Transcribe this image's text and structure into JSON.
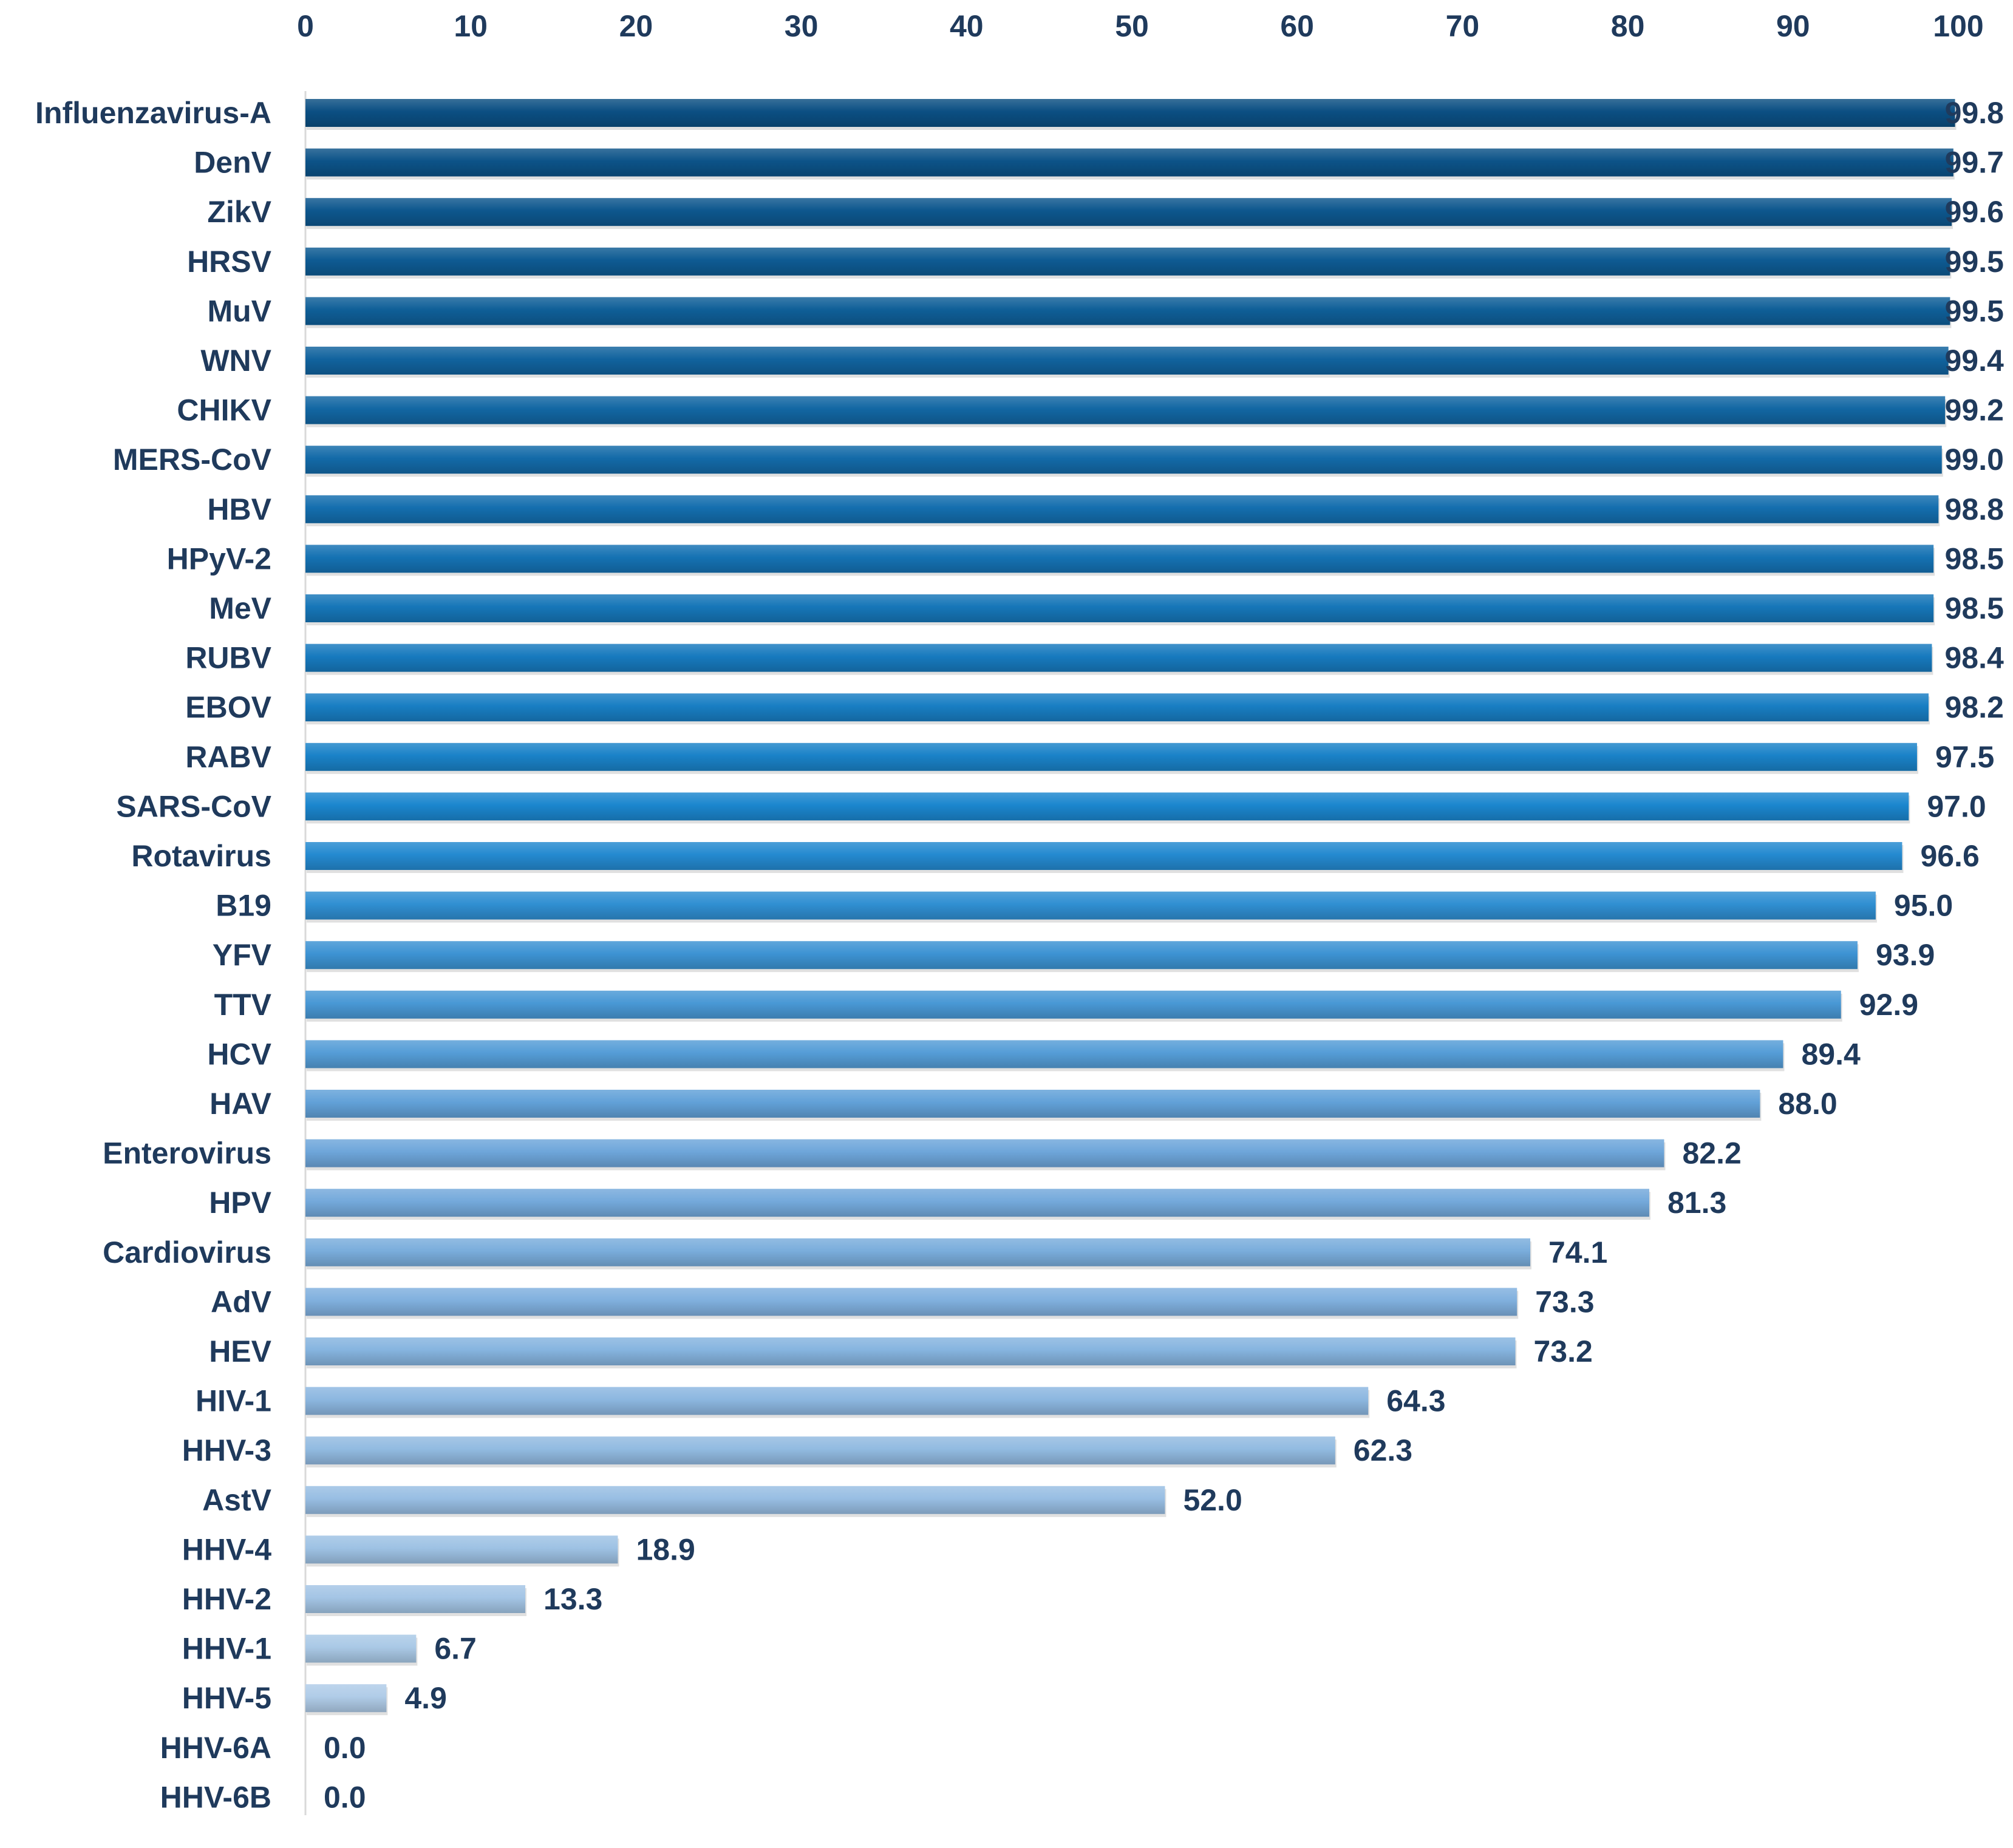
{
  "chart_data": {
    "type": "bar",
    "orientation": "horizontal",
    "title": "",
    "xlabel": "",
    "ylabel": "",
    "xlim": [
      0,
      100
    ],
    "x_ticks": [
      0,
      10,
      20,
      30,
      40,
      50,
      60,
      70,
      80,
      90,
      100
    ],
    "x_axis_position": "top",
    "grid": false,
    "legend": "none",
    "categories": [
      "Influenzavirus-A",
      "DenV",
      "ZikV",
      "HRSV",
      "MuV",
      "WNV",
      "CHIKV",
      "MERS-CoV",
      "HBV",
      "HPyV-2",
      "MeV",
      "RUBV",
      "EBOV",
      "RABV",
      "SARS-CoV",
      "Rotavirus",
      "B19",
      "YFV",
      "TTV",
      "HCV",
      "HAV",
      "Enterovirus",
      "HPV",
      "Cardiovirus",
      "AdV",
      "HEV",
      "HIV-1",
      "HHV-3",
      "AstV",
      "HHV-4",
      "HHV-2",
      "HHV-1",
      "HHV-5",
      "HHV-6A",
      "HHV-6B"
    ],
    "values": [
      99.8,
      99.7,
      99.6,
      99.5,
      99.5,
      99.4,
      99.2,
      99.0,
      98.8,
      98.5,
      98.5,
      98.4,
      98.2,
      97.5,
      97.0,
      96.6,
      95.0,
      93.9,
      92.9,
      89.4,
      88.0,
      82.2,
      81.3,
      74.1,
      73.3,
      73.2,
      64.3,
      62.3,
      52.0,
      18.9,
      13.3,
      6.7,
      4.9,
      0.0,
      0.0
    ],
    "value_labels": [
      "99.8",
      "99.7",
      "99.6",
      "99.5",
      "99.5",
      "99.4",
      "99.2",
      "99.0",
      "98.8",
      "98.5",
      "98.5",
      "98.4",
      "98.2",
      "97.5",
      "97.0",
      "96.6",
      "95.0",
      "93.9",
      "92.9",
      "89.4",
      "88.0",
      "82.2",
      "81.3",
      "74.1",
      "73.3",
      "73.2",
      "64.3",
      "62.3",
      "52.0",
      "18.9",
      "13.3",
      "6.7",
      "4.9",
      "0.0",
      "0.0"
    ],
    "colors": {
      "bar_darkest": "#0b4f83",
      "bar_mid": "#1b87cf",
      "bar_light": "#6fa6da",
      "bar_lightest": "#bcd3ea",
      "text": "#1f3a5c",
      "axis_line": "#d9d9d9"
    }
  }
}
